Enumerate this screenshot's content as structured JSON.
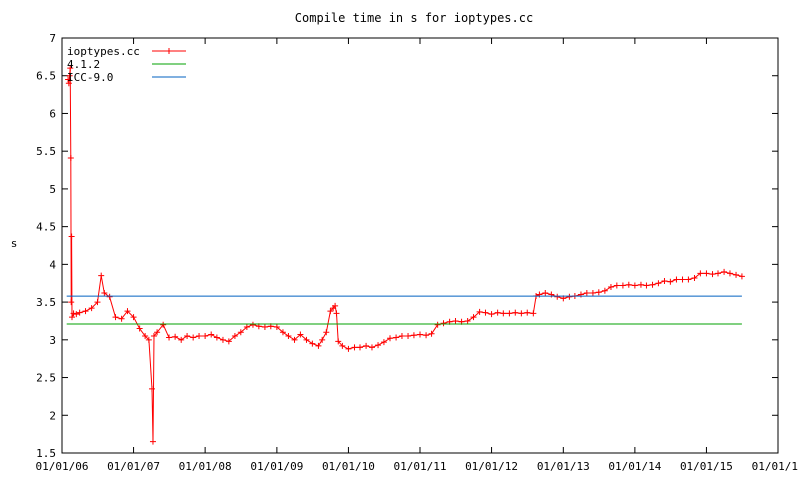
{
  "chart_data": {
    "type": "line",
    "title": "Compile time in s for ioptypes.cc",
    "xlabel": "",
    "ylabel": "s",
    "ylim": [
      1.5,
      7
    ],
    "xlim": [
      "2006-01-01",
      "2016-01-01"
    ],
    "y_ticks": [
      "1.5",
      "2",
      "2.5",
      "3",
      "3.5",
      "4",
      "4.5",
      "5",
      "5.5",
      "6",
      "6.5",
      "7"
    ],
    "x_ticks": [
      {
        "date": "2006-01-01",
        "label": "01/01/06"
      },
      {
        "date": "2007-01-01",
        "label": "01/01/07"
      },
      {
        "date": "2008-01-01",
        "label": "01/01/08"
      },
      {
        "date": "2009-01-01",
        "label": "01/01/09"
      },
      {
        "date": "2010-01-01",
        "label": "01/01/10"
      },
      {
        "date": "2011-01-01",
        "label": "01/01/11"
      },
      {
        "date": "2012-01-01",
        "label": "01/01/12"
      },
      {
        "date": "2013-01-01",
        "label": "01/01/13"
      },
      {
        "date": "2014-01-01",
        "label": "01/01/14"
      },
      {
        "date": "2015-01-01",
        "label": "01/01/15"
      },
      {
        "date": "2016-01-01",
        "label": "01/01/1"
      }
    ],
    "grid": false,
    "legend_position": "top-left",
    "series": [
      {
        "name": "ioptypes.cc",
        "color": "#ff0000",
        "marker": "plus",
        "points": [
          [
            "2006-02-01",
            6.45
          ],
          [
            "2006-02-05",
            6.4
          ],
          [
            "2006-02-09",
            6.5
          ],
          [
            "2006-02-12",
            6.6
          ],
          [
            "2006-02-15",
            5.41
          ],
          [
            "2006-02-17",
            3.5
          ],
          [
            "2006-02-19",
            4.37
          ],
          [
            "2006-02-21",
            3.3
          ],
          [
            "2006-03-01",
            3.35
          ],
          [
            "2006-03-15",
            3.34
          ],
          [
            "2006-04-01",
            3.36
          ],
          [
            "2006-05-01",
            3.38
          ],
          [
            "2006-06-01",
            3.42
          ],
          [
            "2006-07-01",
            3.5
          ],
          [
            "2006-07-20",
            3.85
          ],
          [
            "2006-08-05",
            3.62
          ],
          [
            "2006-09-01",
            3.57
          ],
          [
            "2006-10-01",
            3.3
          ],
          [
            "2006-11-01",
            3.28
          ],
          [
            "2006-12-01",
            3.38
          ],
          [
            "2007-01-01",
            3.3
          ],
          [
            "2007-02-01",
            3.15
          ],
          [
            "2007-03-01",
            3.05
          ],
          [
            "2007-03-20",
            3.0
          ],
          [
            "2007-04-05",
            2.35
          ],
          [
            "2007-04-10",
            1.65
          ],
          [
            "2007-04-15",
            3.05
          ],
          [
            "2007-05-01",
            3.1
          ],
          [
            "2007-06-01",
            3.2
          ],
          [
            "2007-07-01",
            3.03
          ],
          [
            "2007-08-01",
            3.04
          ],
          [
            "2007-09-01",
            3.0
          ],
          [
            "2007-10-01",
            3.05
          ],
          [
            "2007-11-01",
            3.03
          ],
          [
            "2007-12-01",
            3.05
          ],
          [
            "2008-01-01",
            3.05
          ],
          [
            "2008-02-01",
            3.07
          ],
          [
            "2008-03-01",
            3.03
          ],
          [
            "2008-04-01",
            3.0
          ],
          [
            "2008-05-01",
            2.98
          ],
          [
            "2008-06-01",
            3.05
          ],
          [
            "2008-07-01",
            3.1
          ],
          [
            "2008-08-01",
            3.17
          ],
          [
            "2008-09-01",
            3.2
          ],
          [
            "2008-10-01",
            3.18
          ],
          [
            "2008-11-01",
            3.17
          ],
          [
            "2008-12-01",
            3.18
          ],
          [
            "2009-01-01",
            3.17
          ],
          [
            "2009-02-01",
            3.1
          ],
          [
            "2009-03-01",
            3.05
          ],
          [
            "2009-04-01",
            3.0
          ],
          [
            "2009-05-01",
            3.07
          ],
          [
            "2009-06-01",
            3.0
          ],
          [
            "2009-07-01",
            2.95
          ],
          [
            "2009-08-01",
            2.92
          ],
          [
            "2009-08-20",
            3.0
          ],
          [
            "2009-09-10",
            3.1
          ],
          [
            "2009-10-01",
            3.38
          ],
          [
            "2009-10-15",
            3.42
          ],
          [
            "2009-10-25",
            3.45
          ],
          [
            "2009-11-01",
            3.35
          ],
          [
            "2009-11-10",
            2.98
          ],
          [
            "2009-12-01",
            2.92
          ],
          [
            "2010-01-01",
            2.88
          ],
          [
            "2010-02-01",
            2.9
          ],
          [
            "2010-03-01",
            2.9
          ],
          [
            "2010-04-01",
            2.92
          ],
          [
            "2010-05-01",
            2.9
          ],
          [
            "2010-06-01",
            2.93
          ],
          [
            "2010-07-01",
            2.97
          ],
          [
            "2010-08-01",
            3.02
          ],
          [
            "2010-09-01",
            3.03
          ],
          [
            "2010-10-01",
            3.05
          ],
          [
            "2010-11-01",
            3.05
          ],
          [
            "2010-12-01",
            3.06
          ],
          [
            "2011-01-01",
            3.07
          ],
          [
            "2011-02-01",
            3.06
          ],
          [
            "2011-03-01",
            3.08
          ],
          [
            "2011-04-01",
            3.2
          ],
          [
            "2011-05-01",
            3.22
          ],
          [
            "2011-06-01",
            3.24
          ],
          [
            "2011-07-01",
            3.25
          ],
          [
            "2011-08-01",
            3.24
          ],
          [
            "2011-09-01",
            3.25
          ],
          [
            "2011-10-01",
            3.3
          ],
          [
            "2011-11-01",
            3.37
          ],
          [
            "2011-12-01",
            3.36
          ],
          [
            "2012-01-01",
            3.34
          ],
          [
            "2012-02-01",
            3.36
          ],
          [
            "2012-03-01",
            3.35
          ],
          [
            "2012-04-01",
            3.35
          ],
          [
            "2012-05-01",
            3.36
          ],
          [
            "2012-06-01",
            3.35
          ],
          [
            "2012-07-01",
            3.36
          ],
          [
            "2012-08-01",
            3.35
          ],
          [
            "2012-08-15",
            3.58
          ],
          [
            "2012-09-01",
            3.6
          ],
          [
            "2012-10-01",
            3.62
          ],
          [
            "2012-11-01",
            3.6
          ],
          [
            "2012-12-01",
            3.57
          ],
          [
            "2013-01-01",
            3.55
          ],
          [
            "2013-02-01",
            3.57
          ],
          [
            "2013-03-01",
            3.58
          ],
          [
            "2013-04-01",
            3.6
          ],
          [
            "2013-05-01",
            3.62
          ],
          [
            "2013-06-01",
            3.62
          ],
          [
            "2013-07-01",
            3.63
          ],
          [
            "2013-08-01",
            3.65
          ],
          [
            "2013-09-01",
            3.7
          ],
          [
            "2013-10-01",
            3.72
          ],
          [
            "2013-11-01",
            3.72
          ],
          [
            "2013-12-01",
            3.73
          ],
          [
            "2014-01-01",
            3.72
          ],
          [
            "2014-02-01",
            3.73
          ],
          [
            "2014-03-01",
            3.72
          ],
          [
            "2014-04-01",
            3.73
          ],
          [
            "2014-05-01",
            3.75
          ],
          [
            "2014-06-01",
            3.78
          ],
          [
            "2014-07-01",
            3.77
          ],
          [
            "2014-08-01",
            3.8
          ],
          [
            "2014-09-01",
            3.8
          ],
          [
            "2014-10-01",
            3.8
          ],
          [
            "2014-11-01",
            3.82
          ],
          [
            "2014-12-01",
            3.88
          ],
          [
            "2015-01-01",
            3.88
          ],
          [
            "2015-02-01",
            3.87
          ],
          [
            "2015-03-01",
            3.88
          ],
          [
            "2015-04-01",
            3.9
          ],
          [
            "2015-05-01",
            3.88
          ],
          [
            "2015-06-01",
            3.86
          ],
          [
            "2015-07-01",
            3.84
          ]
        ]
      },
      {
        "name": "4.1.2",
        "color": "#00a000",
        "marker": "none",
        "points": [
          [
            "2006-01-25",
            3.21
          ],
          [
            "2015-07-01",
            3.21
          ]
        ]
      },
      {
        "name": "ICC-9.0",
        "color": "#0060c0",
        "marker": "none",
        "points": [
          [
            "2006-01-25",
            3.58
          ],
          [
            "2015-07-01",
            3.58
          ]
        ]
      }
    ]
  }
}
